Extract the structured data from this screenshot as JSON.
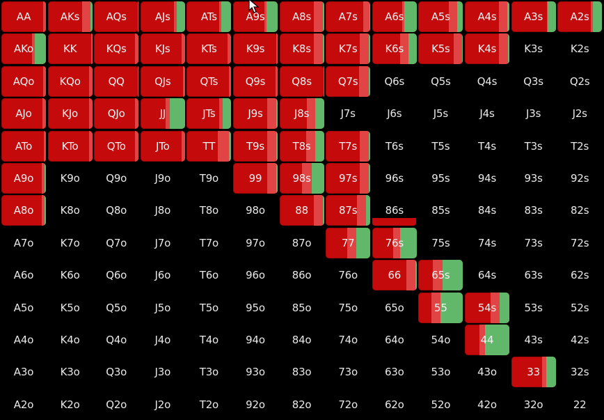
{
  "colors": {
    "background": "#000000",
    "raise": "#c40a0a",
    "raise_dark": "#9c0606",
    "mixed": "#e14444",
    "call": "#62b86a",
    "text": "#e8e8e8"
  },
  "grid": {
    "ranks": [
      "A",
      "K",
      "Q",
      "J",
      "T",
      "9",
      "8",
      "7",
      "6",
      "5",
      "4",
      "3",
      "2"
    ],
    "rows": [
      [
        "AA",
        "AKs",
        "AQs",
        "AJs",
        "ATs",
        "A9s",
        "A8s",
        "A7s",
        "A6s",
        "A5s",
        "A4s",
        "A3s",
        "A2s"
      ],
      [
        "AKo",
        "KK",
        "KQs",
        "KJs",
        "KTs",
        "K9s",
        "K8s",
        "K7s",
        "K6s",
        "K5s",
        "K4s",
        "K3s",
        "K2s"
      ],
      [
        "AQo",
        "KQo",
        "QQ",
        "QJs",
        "QTs",
        "Q9s",
        "Q8s",
        "Q7s",
        "Q6s",
        "Q5s",
        "Q4s",
        "Q3s",
        "Q2s"
      ],
      [
        "AJo",
        "KJo",
        "QJo",
        "JJ",
        "JTs",
        "J9s",
        "J8s",
        "J7s",
        "J6s",
        "J5s",
        "J4s",
        "J3s",
        "J2s"
      ],
      [
        "ATo",
        "KTo",
        "QTo",
        "JTo",
        "TT",
        "T9s",
        "T8s",
        "T7s",
        "T6s",
        "T5s",
        "T4s",
        "T3s",
        "T2s"
      ],
      [
        "A9o",
        "K9o",
        "Q9o",
        "J9o",
        "T9o",
        "99",
        "98s",
        "97s",
        "96s",
        "95s",
        "94s",
        "93s",
        "92s"
      ],
      [
        "A8o",
        "K8o",
        "Q8o",
        "J8o",
        "T8o",
        "98o",
        "88",
        "87s",
        "86s",
        "85s",
        "84s",
        "83s",
        "82s"
      ],
      [
        "A7o",
        "K7o",
        "Q7o",
        "J7o",
        "T7o",
        "97o",
        "87o",
        "77",
        "76s",
        "75s",
        "74s",
        "73s",
        "72s"
      ],
      [
        "A6o",
        "K6o",
        "Q6o",
        "J6o",
        "T6o",
        "96o",
        "86o",
        "76o",
        "66",
        "65s",
        "64s",
        "63s",
        "62s"
      ],
      [
        "A5o",
        "K5o",
        "Q5o",
        "J5o",
        "T5o",
        "95o",
        "85o",
        "75o",
        "65o",
        "55",
        "54s",
        "53s",
        "52s"
      ],
      [
        "A4o",
        "K4o",
        "Q4o",
        "J4o",
        "T4o",
        "94o",
        "84o",
        "74o",
        "64o",
        "54o",
        "44",
        "43s",
        "42s"
      ],
      [
        "A3o",
        "K3o",
        "Q3o",
        "J3o",
        "T3o",
        "93o",
        "83o",
        "73o",
        "63o",
        "53o",
        "43o",
        "33",
        "32s"
      ],
      [
        "A2o",
        "K2o",
        "Q2o",
        "J2o",
        "T2o",
        "92o",
        "82o",
        "72o",
        "62o",
        "52o",
        "42o",
        "32o",
        "22"
      ]
    ],
    "strategy": {
      "AA": {
        "raise": 0.88,
        "mixed": 0.06,
        "call": 0.0
      },
      "AKs": {
        "raise": 0.72,
        "mixed": 0.18,
        "call": 0.04
      },
      "AQs": {
        "raise": 0.95,
        "mixed": 0.02,
        "call": 0.0
      },
      "AJs": {
        "raise": 0.68,
        "mixed": 0.06,
        "call": 0.18
      },
      "ATs": {
        "raise": 0.65,
        "mixed": 0.05,
        "call": 0.22
      },
      "A9s": {
        "raise": 0.62,
        "mixed": 0.05,
        "call": 0.25
      },
      "A8s": {
        "raise": 0.72,
        "mixed": 0.2,
        "call": 0.03
      },
      "A7s": {
        "raise": 0.78,
        "mixed": 0.14,
        "call": 0.02
      },
      "A6s": {
        "raise": 0.6,
        "mixed": 0.05,
        "call": 0.28
      },
      "A5s": {
        "raise": 0.62,
        "mixed": 0.18,
        "call": 0.12
      },
      "A4s": {
        "raise": 0.72,
        "mixed": 0.18,
        "call": 0.04
      },
      "A3s": {
        "raise": 0.75,
        "mixed": 0.02,
        "call": 0.18
      },
      "A2s": {
        "raise": 0.7,
        "mixed": 0.05,
        "call": 0.2
      },
      "AKo": {
        "raise": 0.66,
        "mixed": 0.06,
        "call": 0.25
      },
      "KK": {
        "raise": 0.94,
        "mixed": 0.03,
        "call": 0.0
      },
      "KQs": {
        "raise": 0.88,
        "mixed": 0.08,
        "call": 0.0
      },
      "KJs": {
        "raise": 0.88,
        "mixed": 0.08,
        "call": 0.0
      },
      "KTs": {
        "raise": 0.88,
        "mixed": 0.08,
        "call": 0.0
      },
      "K9s": {
        "raise": 0.94,
        "mixed": 0.03,
        "call": 0.0
      },
      "K8s": {
        "raise": 0.72,
        "mixed": 0.2,
        "call": 0.03
      },
      "K7s": {
        "raise": 0.72,
        "mixed": 0.2,
        "call": 0.03
      },
      "K6s": {
        "raise": 0.6,
        "mixed": 0.18,
        "call": 0.18
      },
      "K5s": {
        "raise": 0.75,
        "mixed": 0.18,
        "call": 0.02
      },
      "K4s": {
        "raise": 0.72,
        "mixed": 0.2,
        "call": 0.03
      },
      "AQo": {
        "raise": 0.9,
        "mixed": 0.06,
        "call": 0.0
      },
      "KQo": {
        "raise": 0.88,
        "mixed": 0.08,
        "call": 0.0
      },
      "QQ": {
        "raise": 0.95,
        "mixed": 0.02,
        "call": 0.0
      },
      "QJs": {
        "raise": 0.92,
        "mixed": 0.05,
        "call": 0.0
      },
      "QTs": {
        "raise": 0.92,
        "mixed": 0.05,
        "call": 0.0
      },
      "Q9s": {
        "raise": 0.92,
        "mixed": 0.05,
        "call": 0.0
      },
      "Q8s": {
        "raise": 0.95,
        "mixed": 0.02,
        "call": 0.0
      },
      "Q7s": {
        "raise": 0.7,
        "mixed": 0.22,
        "call": 0.03
      },
      "AJo": {
        "raise": 0.88,
        "mixed": 0.08,
        "call": 0.0
      },
      "KJo": {
        "raise": 0.88,
        "mixed": 0.08,
        "call": 0.0
      },
      "QJo": {
        "raise": 0.88,
        "mixed": 0.08,
        "call": 0.0
      },
      "JJ": {
        "raise": 0.55,
        "mixed": 0.1,
        "call": 0.35
      },
      "JTs": {
        "raise": 0.72,
        "mixed": 0.08,
        "call": 0.18
      },
      "J9s": {
        "raise": 0.72,
        "mixed": 0.2,
        "call": 0.03
      },
      "J8s": {
        "raise": 0.6,
        "mixed": 0.18,
        "call": 0.2
      },
      "ATo": {
        "raise": 0.92,
        "mixed": 0.05,
        "call": 0.0
      },
      "KTo": {
        "raise": 0.88,
        "mixed": 0.08,
        "call": 0.0
      },
      "QTo": {
        "raise": 0.88,
        "mixed": 0.08,
        "call": 0.0
      },
      "JTo": {
        "raise": 0.88,
        "mixed": 0.08,
        "call": 0.0
      },
      "TT": {
        "raise": 0.65,
        "mixed": 0.25,
        "call": 0.05
      },
      "T9s": {
        "raise": 0.72,
        "mixed": 0.2,
        "call": 0.03
      },
      "T8s": {
        "raise": 0.55,
        "mixed": 0.2,
        "call": 0.2
      },
      "T7s": {
        "raise": 0.72,
        "mixed": 0.2,
        "call": 0.03
      },
      "A9o": {
        "raise": 0.88,
        "mixed": 0.06,
        "call": 0.03
      },
      "99": {
        "raise": 0.72,
        "mixed": 0.2,
        "call": 0.03
      },
      "98s": {
        "raise": 0.45,
        "mixed": 0.22,
        "call": 0.28
      },
      "97s": {
        "raise": 0.72,
        "mixed": 0.2,
        "call": 0.03
      },
      "A8o": {
        "raise": 0.88,
        "mixed": 0.06,
        "call": 0.03
      },
      "88": {
        "raise": 0.72,
        "mixed": 0.2,
        "call": 0.03
      },
      "87s": {
        "raise": 0.62,
        "mixed": 0.2,
        "call": 0.1
      },
      "77": {
        "raise": 0.45,
        "mixed": 0.2,
        "call": 0.32
      },
      "76s": {
        "raise": 0.45,
        "mixed": 0.15,
        "call": 0.38
      },
      "66": {
        "raise": 0.72,
        "mixed": 0.2,
        "call": 0.03
      },
      "65s": {
        "raise": 0.3,
        "mixed": 0.22,
        "call": 0.45
      },
      "55": {
        "raise": 0.25,
        "mixed": 0.2,
        "call": 0.5
      },
      "54s": {
        "raise": 0.55,
        "mixed": 0.2,
        "call": 0.22
      },
      "44": {
        "raise": 0.3,
        "mixed": 0.12,
        "call": 0.55
      },
      "33": {
        "raise": 0.65,
        "mixed": 0.1,
        "call": 0.22
      }
    }
  }
}
